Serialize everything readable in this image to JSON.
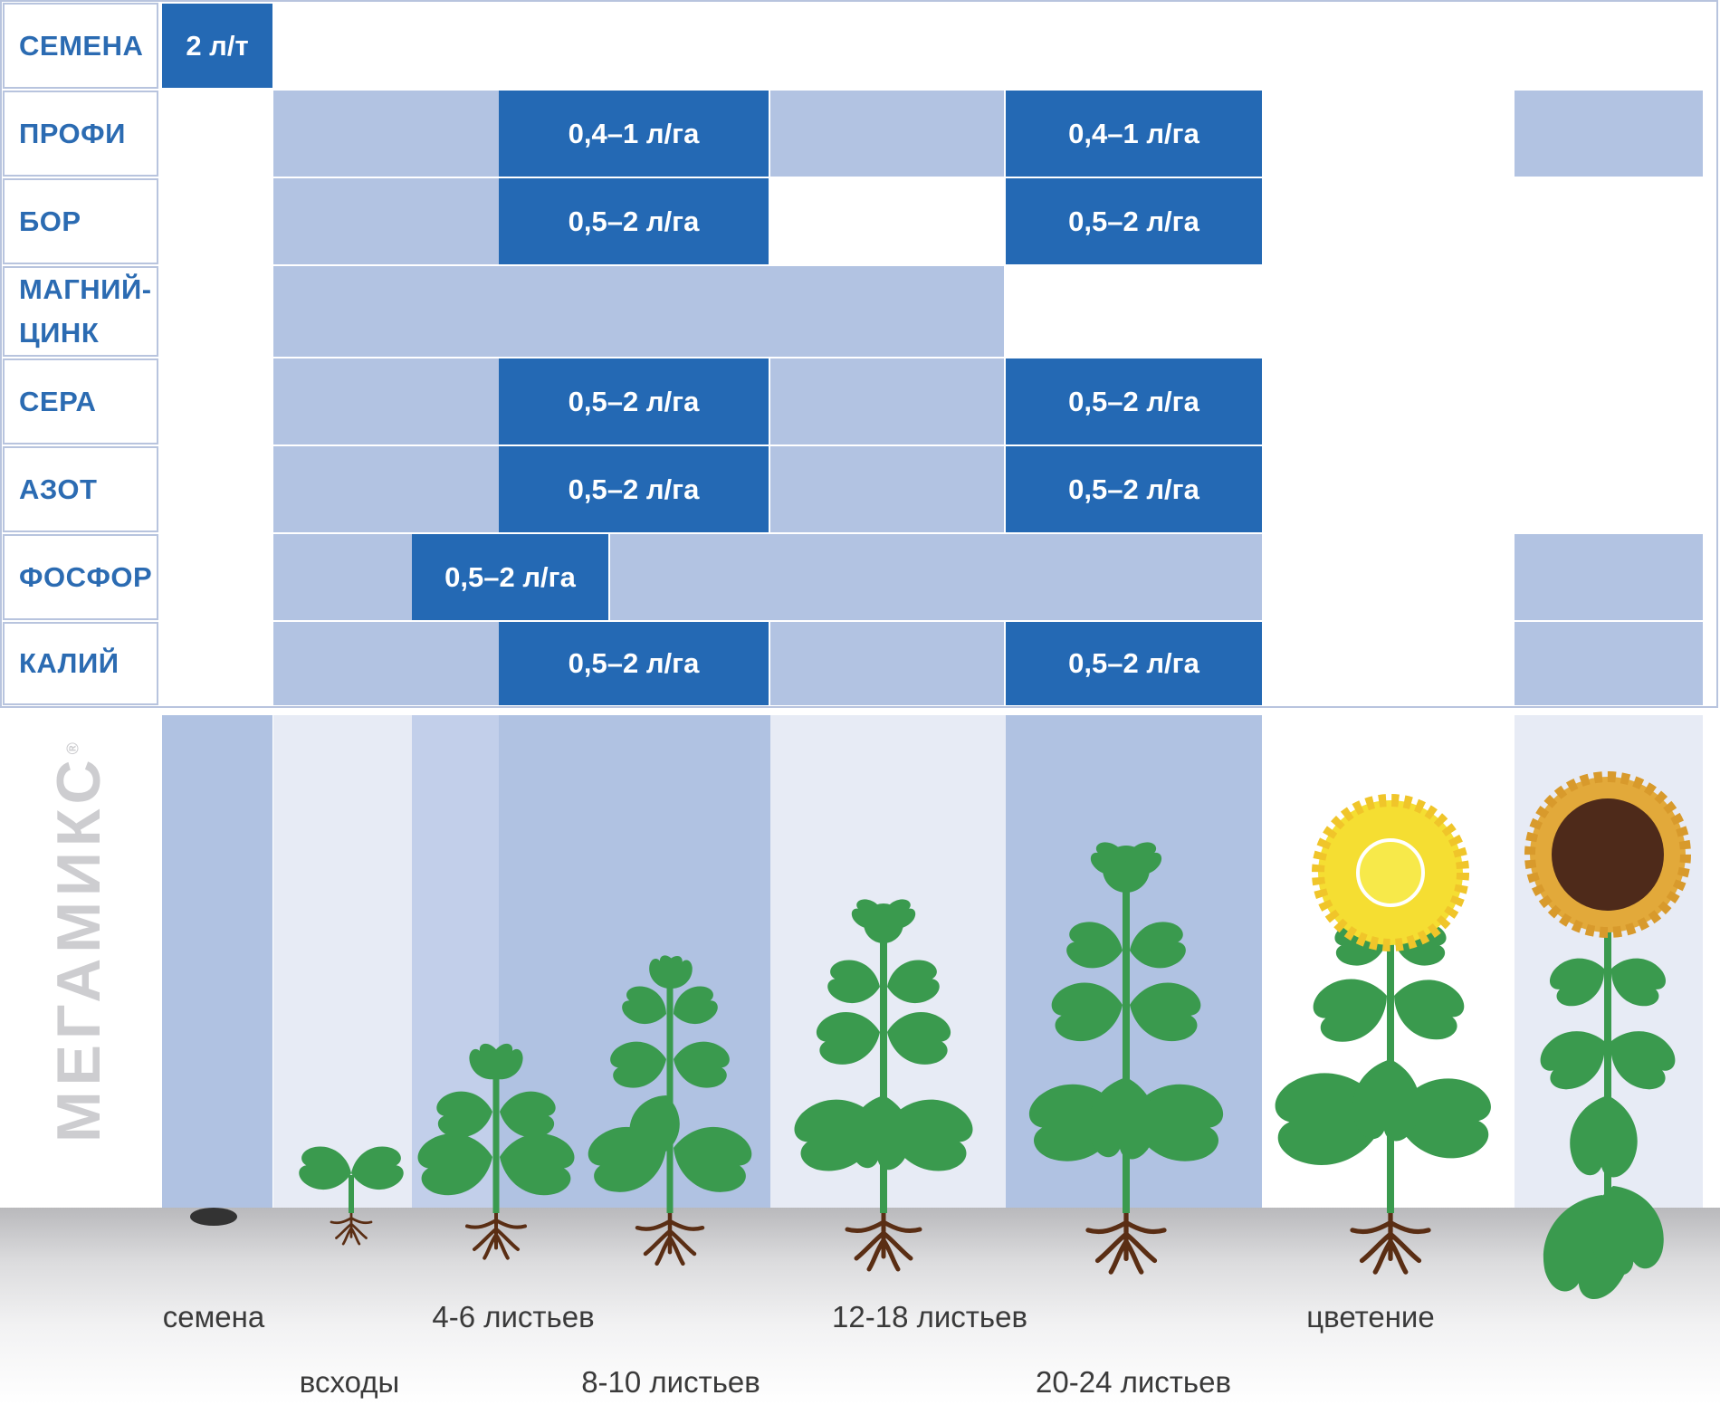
{
  "rows": [
    {
      "label": "СЕМЕНА",
      "doses": [
        "2 л/т"
      ]
    },
    {
      "label": "ПРОФИ",
      "doses": [
        "0,4–1 л/га",
        "0,4–1 л/га"
      ]
    },
    {
      "label": "БОР",
      "doses": [
        "0,5–2 л/га",
        "0,5–2 л/га"
      ]
    },
    {
      "label": "МАГНИЙ-\nЦИНК",
      "doses": []
    },
    {
      "label": "СЕРА",
      "doses": [
        "0,5–2 л/га",
        "0,5–2 л/га"
      ]
    },
    {
      "label": "АЗОТ",
      "doses": [
        "0,5–2 л/га",
        "0,5–2 л/га"
      ]
    },
    {
      "label": "ФОСФОР",
      "doses": [
        "0,5–2 л/га"
      ]
    },
    {
      "label": "КАЛИЙ",
      "doses": [
        "0,5–2 л/га",
        "0,5–2 л/га"
      ]
    }
  ],
  "brand": {
    "name": "МЕГАМИКС",
    "mark": "®"
  },
  "stages": [
    "семена",
    "всходы",
    "4-6 листьев",
    "8-10 листьев",
    "12-18 листьев",
    "20-24 листьев",
    "цветение"
  ],
  "colors": {
    "dark_bar": "#2469b4",
    "light_bar": "#b2c3e2",
    "label_text": "#2b6bb2",
    "leaf": "#3a9a4e",
    "stem": "#3a9a4e",
    "root": "#5a2e14",
    "petal": "#f5de32",
    "disk_ripe": "#4e2a1a"
  }
}
